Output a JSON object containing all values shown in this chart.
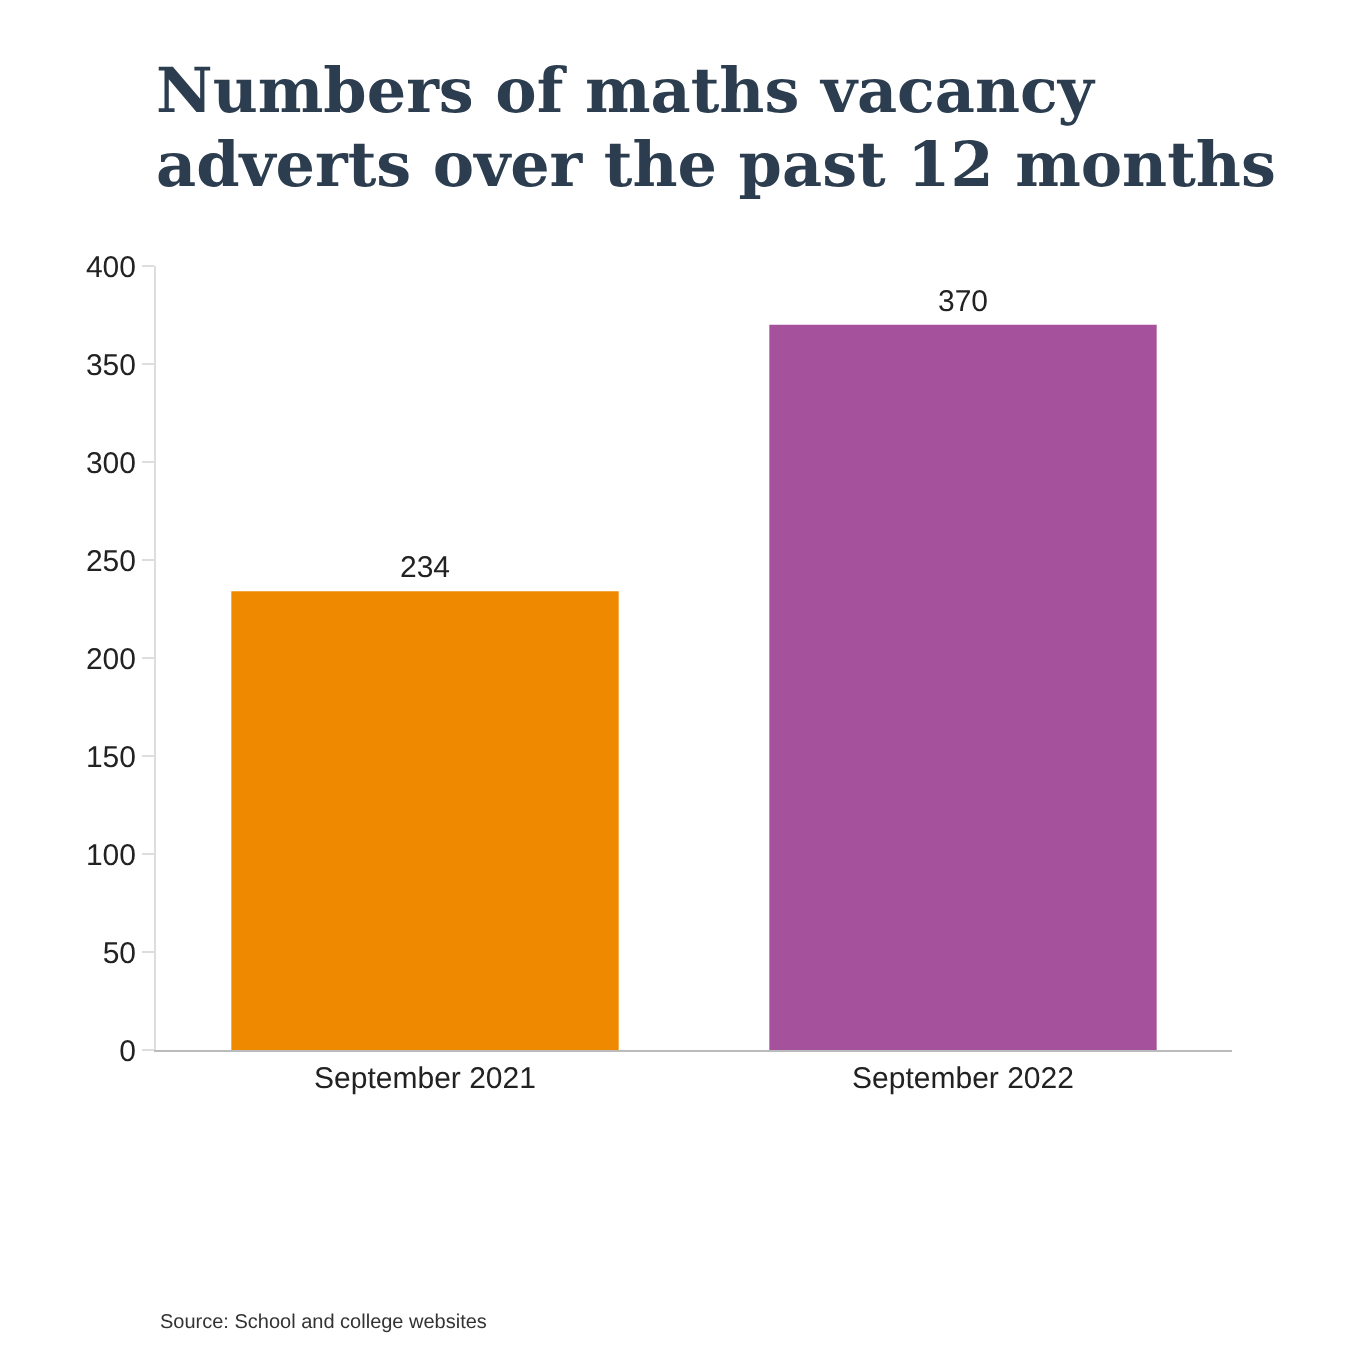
{
  "chart_data": {
    "type": "bar",
    "title": "Numbers of maths vacancy adverts over the past 12 months",
    "categories": [
      "September 2021",
      "September 2022"
    ],
    "values": [
      234,
      370
    ],
    "colors": [
      "#ef8a00",
      "#a6519b"
    ],
    "ylim": [
      0,
      400
    ],
    "yticks": [
      0,
      50,
      100,
      150,
      200,
      250,
      300,
      350,
      400
    ],
    "grid": false,
    "data_labels": true,
    "legend": false,
    "annotations": [
      "Source: School and college websites"
    ]
  }
}
